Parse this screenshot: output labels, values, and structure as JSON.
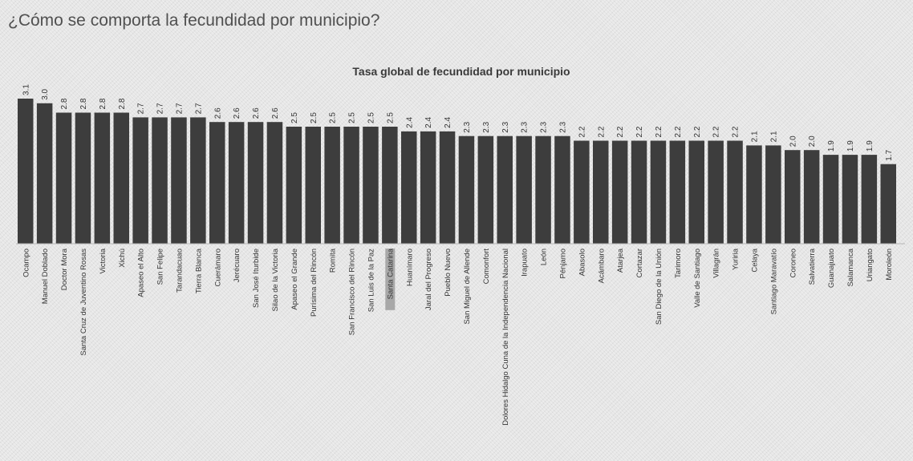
{
  "page": {
    "heading": "¿Cómo se comporta la fecundidad por municipio?"
  },
  "chart_data": {
    "type": "bar",
    "title": "Tasa global de fecundidad por municipio",
    "xlabel": "",
    "ylabel": "",
    "ylim": [
      0,
      3.1
    ],
    "grid": false,
    "legend": "none",
    "bar_color": "#3d3d3d",
    "highlight_label_bg": "#a8a8a8",
    "highlighted_category": "Santa Catarina",
    "categories": [
      "Ocampo",
      "Manuel Doblado",
      "Doctor Mora",
      "Santa Cruz de Juventino Rosas",
      "Victoria",
      "Xichú",
      "Apaseo el Alto",
      "San Felipe",
      "Tarandacuao",
      "Tierra Blanca",
      "Cuerámaro",
      "Jerécuaro",
      "San José Iturbide",
      "Silao de la Victoria",
      "Apaseo el Grande",
      "Purísima del Rincón",
      "Romita",
      "San Francisco del Rincón",
      "San Luis de la Paz",
      "Santa Catarina",
      "Huanímaro",
      "Jaral del Progreso",
      "Pueblo Nuevo",
      "San Miguel de Allende",
      "Comonfort",
      "Dolores Hidalgo Cuna de la Independencia Nacional",
      "Irapuato",
      "León",
      "Pénjamo",
      "Abasolo",
      "Acámbaro",
      "Atarjea",
      "Cortazar",
      "San Diego de la Unión",
      "Tarimoro",
      "Valle de Santiago",
      "Villagrán",
      "Yuriria",
      "Celaya",
      "Santiago Maravatío",
      "Coroneo",
      "Salvatierra",
      "Guanajuato",
      "Salamanca",
      "Uriangato",
      "Moroleón"
    ],
    "values": [
      3.1,
      3.0,
      2.8,
      2.8,
      2.8,
      2.8,
      2.7,
      2.7,
      2.7,
      2.7,
      2.6,
      2.6,
      2.6,
      2.6,
      2.5,
      2.5,
      2.5,
      2.5,
      2.5,
      2.5,
      2.4,
      2.4,
      2.4,
      2.3,
      2.3,
      2.3,
      2.3,
      2.3,
      2.3,
      2.2,
      2.2,
      2.2,
      2.2,
      2.2,
      2.2,
      2.2,
      2.2,
      2.2,
      2.1,
      2.1,
      2.0,
      2.0,
      1.9,
      1.9,
      1.9,
      1.7
    ],
    "data_labels": [
      "3.1",
      "3.0",
      "2.8",
      "2.8",
      "2.8",
      "2.8",
      "2.7",
      "2.7",
      "2.7",
      "2.7",
      "2.6",
      "2.6",
      "2.6",
      "2.6",
      "2.5",
      "2.5",
      "2.5",
      "2.5",
      "2.5",
      "2.5",
      "2.4",
      "2.4",
      "2.4",
      "2.3",
      "2.3",
      "2.3",
      "2.3",
      "2.3",
      "2.3",
      "2.2",
      "2.2",
      "2.2",
      "2.2",
      "2.2",
      "2.2",
      "2.2",
      "2.2",
      "2.2",
      "2.1",
      "2.1",
      "2.0",
      "2.0",
      "1.9",
      "1.9",
      "1.9",
      "1.7"
    ]
  }
}
